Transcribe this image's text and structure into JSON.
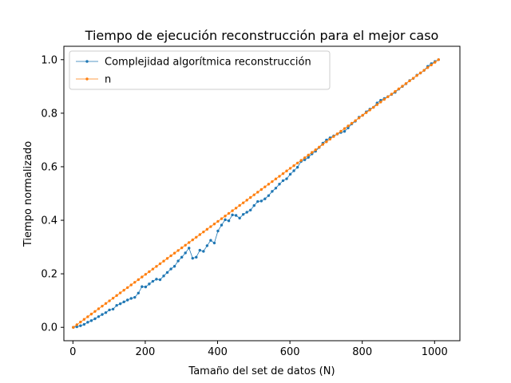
{
  "chart_data": {
    "type": "line",
    "title": "Tiempo de ejecución reconstrucción para el mejor caso",
    "xlabel": "Tamaño del set de datos (N)",
    "ylabel": "Tiempo normalizado",
    "xlim": [
      -25,
      1070
    ],
    "ylim": [
      -0.05,
      1.05
    ],
    "xticks": [
      0,
      200,
      400,
      600,
      800,
      1000
    ],
    "xtick_labels": [
      "0",
      "200",
      "400",
      "600",
      "800",
      "1000"
    ],
    "yticks": [
      0.0,
      0.2,
      0.4,
      0.6,
      0.8,
      1.0
    ],
    "ytick_labels": [
      "0.0",
      "0.2",
      "0.4",
      "0.6",
      "0.8",
      "1.0"
    ],
    "grid": false,
    "legend_position": "top-left",
    "series": [
      {
        "name": "Complejidad algorítmica reconstrucción",
        "color": "#1f77b4",
        "x": [
          1,
          11,
          21,
          31,
          41,
          51,
          61,
          71,
          81,
          91,
          101,
          111,
          121,
          131,
          141,
          151,
          161,
          171,
          181,
          191,
          201,
          211,
          221,
          231,
          241,
          251,
          261,
          271,
          281,
          291,
          301,
          311,
          321,
          331,
          341,
          351,
          361,
          371,
          381,
          391,
          401,
          411,
          421,
          431,
          441,
          451,
          461,
          471,
          481,
          491,
          501,
          511,
          521,
          531,
          541,
          551,
          561,
          571,
          581,
          591,
          601,
          611,
          621,
          631,
          641,
          651,
          661,
          671,
          681,
          691,
          701,
          711,
          721,
          731,
          741,
          751,
          761,
          771,
          781,
          791,
          801,
          811,
          821,
          831,
          841,
          851,
          861,
          871,
          881,
          891,
          901,
          911,
          921,
          931,
          941,
          951,
          961,
          971,
          981,
          991,
          1001,
          1011
        ],
        "y": [
          0.0,
          0.002,
          0.006,
          0.011,
          0.019,
          0.025,
          0.032,
          0.04,
          0.048,
          0.055,
          0.065,
          0.068,
          0.082,
          0.088,
          0.095,
          0.102,
          0.108,
          0.112,
          0.128,
          0.152,
          0.151,
          0.162,
          0.172,
          0.18,
          0.178,
          0.192,
          0.205,
          0.218,
          0.228,
          0.248,
          0.262,
          0.278,
          0.296,
          0.258,
          0.262,
          0.288,
          0.284,
          0.305,
          0.325,
          0.315,
          0.36,
          0.382,
          0.402,
          0.398,
          0.42,
          0.418,
          0.408,
          0.422,
          0.43,
          0.438,
          0.455,
          0.47,
          0.472,
          0.48,
          0.492,
          0.508,
          0.52,
          0.535,
          0.548,
          0.555,
          0.572,
          0.585,
          0.598,
          0.62,
          0.626,
          0.635,
          0.648,
          0.658,
          0.672,
          0.688,
          0.7,
          0.708,
          0.715,
          0.722,
          0.728,
          0.732,
          0.745,
          0.76,
          0.77,
          0.785,
          0.792,
          0.805,
          0.815,
          0.822,
          0.838,
          0.848,
          0.855,
          0.862,
          0.87,
          0.878,
          0.89,
          0.9,
          0.91,
          0.922,
          0.93,
          0.942,
          0.95,
          0.96,
          0.975,
          0.985,
          0.993,
          1.0
        ]
      },
      {
        "name": "n",
        "color": "#ff7f0e",
        "x": [
          1,
          11,
          21,
          31,
          41,
          51,
          61,
          71,
          81,
          91,
          101,
          111,
          121,
          131,
          141,
          151,
          161,
          171,
          181,
          191,
          201,
          211,
          221,
          231,
          241,
          251,
          261,
          271,
          281,
          291,
          301,
          311,
          321,
          331,
          341,
          351,
          361,
          371,
          381,
          391,
          401,
          411,
          421,
          431,
          441,
          451,
          461,
          471,
          481,
          491,
          501,
          511,
          521,
          531,
          541,
          551,
          561,
          571,
          581,
          591,
          601,
          611,
          621,
          631,
          641,
          651,
          661,
          671,
          681,
          691,
          701,
          711,
          721,
          731,
          741,
          751,
          761,
          771,
          781,
          791,
          801,
          811,
          821,
          831,
          841,
          851,
          861,
          871,
          881,
          891,
          901,
          911,
          921,
          931,
          941,
          951,
          961,
          971,
          981,
          991,
          1001,
          1011
        ],
        "y": [
          0.0,
          0.0099,
          0.0198,
          0.0297,
          0.0396,
          0.0495,
          0.0594,
          0.0693,
          0.0792,
          0.0891,
          0.099,
          0.1089,
          0.1188,
          0.1287,
          0.1386,
          0.1485,
          0.1584,
          0.1683,
          0.1782,
          0.1881,
          0.198,
          0.2079,
          0.2178,
          0.2277,
          0.2376,
          0.2475,
          0.2574,
          0.2673,
          0.2772,
          0.2871,
          0.297,
          0.3069,
          0.3168,
          0.3267,
          0.3366,
          0.3465,
          0.3564,
          0.3663,
          0.3762,
          0.3861,
          0.396,
          0.4059,
          0.4158,
          0.4257,
          0.4356,
          0.4455,
          0.4554,
          0.4653,
          0.4752,
          0.4851,
          0.495,
          0.5049,
          0.5149,
          0.5248,
          0.5347,
          0.5446,
          0.5545,
          0.5644,
          0.5743,
          0.5842,
          0.5941,
          0.604,
          0.6139,
          0.6238,
          0.6337,
          0.6436,
          0.6535,
          0.6634,
          0.6733,
          0.6832,
          0.6931,
          0.703,
          0.7129,
          0.7228,
          0.7327,
          0.7426,
          0.7525,
          0.7624,
          0.7723,
          0.7822,
          0.7921,
          0.802,
          0.8119,
          0.8218,
          0.8317,
          0.8416,
          0.8515,
          0.8614,
          0.8713,
          0.8812,
          0.8911,
          0.901,
          0.9109,
          0.9208,
          0.9307,
          0.9406,
          0.9505,
          0.9604,
          0.9703,
          0.9802,
          0.9901,
          1.0
        ]
      }
    ]
  }
}
